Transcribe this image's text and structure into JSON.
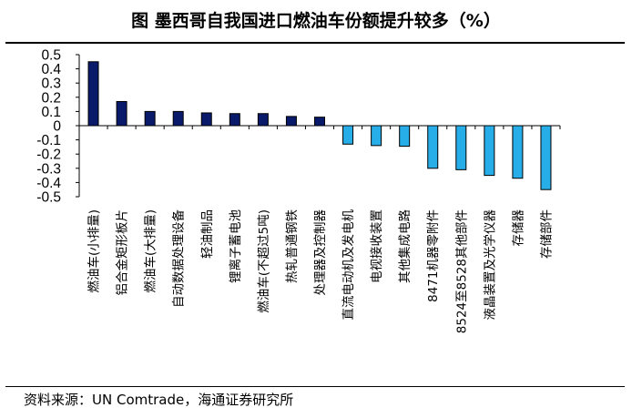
{
  "title": "图   墨西哥自我国进口燃油车份额提升较多（%）",
  "source": "资料来源：UN Comtrade，海通证券研究所",
  "chart_data": {
    "type": "bar",
    "title": "图   墨西哥自我国进口燃油车份额提升较多（%）",
    "xlabel": "",
    "ylabel": "",
    "ylim": [
      -0.5,
      0.5
    ],
    "yticks": [
      "0.5",
      "0.4",
      "0.3",
      "0.2",
      "0.1",
      "0",
      "-0.1",
      "-0.2",
      "-0.3",
      "-0.4",
      "-0.5"
    ],
    "grid": false,
    "legend": "none",
    "colors": {
      "positive": "#0a1a6b",
      "negative": "#27aee8"
    },
    "categories": [
      "燃油车(小排量)",
      "铝合金矩形板片",
      "燃油车(大排量)",
      "自动数据处理设备",
      "轻油制品",
      "锂离子蓄电池",
      "燃油车(不超过5吨)",
      "热轧普通钢铁",
      "处理器及控制器",
      "直流电动机及发电机",
      "电视接收装置",
      "其他集成电路",
      "8471机器零附件",
      "8524至8528其他部件",
      "液晶装置及光学仪器",
      "存储器",
      "存储部件"
    ],
    "values": [
      0.45,
      0.17,
      0.1,
      0.1,
      0.09,
      0.085,
      0.085,
      0.065,
      0.06,
      -0.13,
      -0.14,
      -0.145,
      -0.3,
      -0.31,
      -0.35,
      -0.37,
      -0.45
    ]
  }
}
